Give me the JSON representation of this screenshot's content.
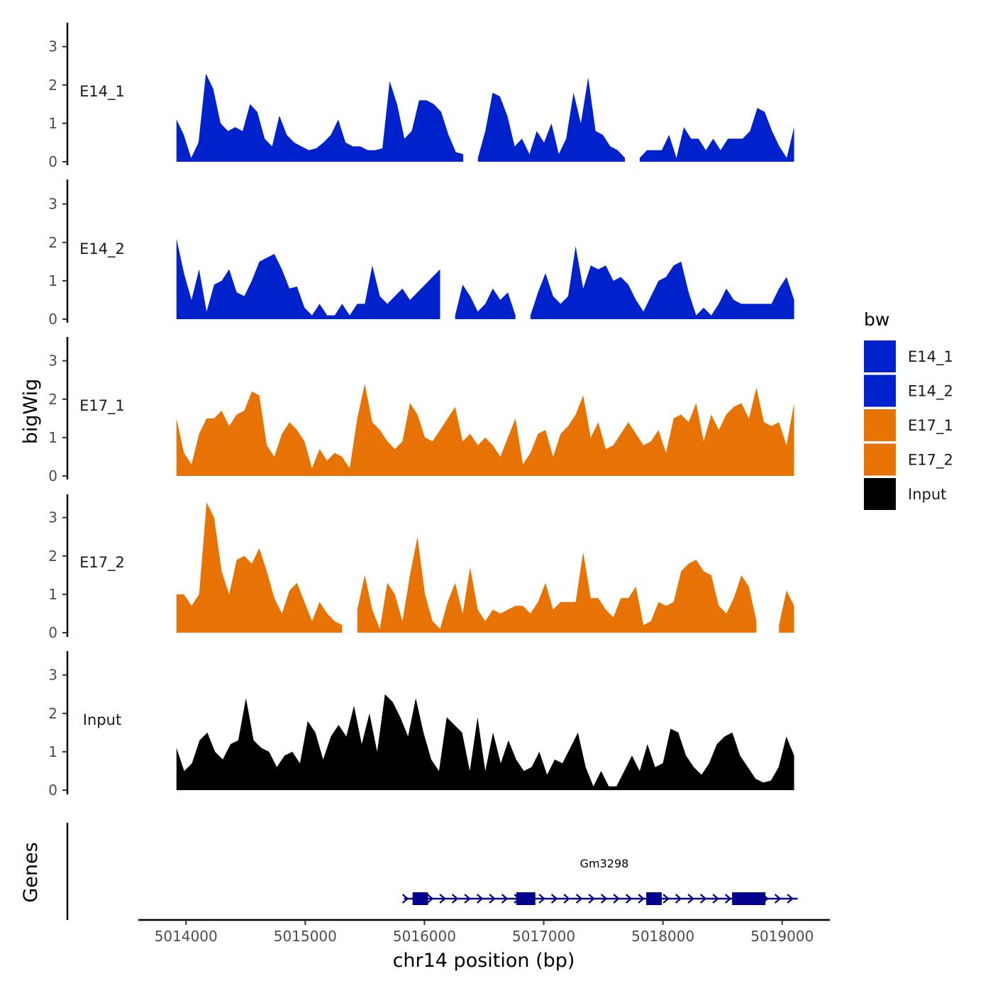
{
  "chart_data": {
    "type": "area",
    "title": "",
    "xlabel": "chr14 position (bp)",
    "ylabel": "bigWig",
    "genes_label": "Genes",
    "xlim": [
      5013600,
      5019400
    ],
    "ylim": [
      0,
      3.5
    ],
    "x_ticks": [
      5014000,
      5015000,
      5016000,
      5017000,
      5018000,
      5019000
    ],
    "x_tick_labels": [
      "5014000",
      "5015000",
      "5016000",
      "5017000",
      "5018000",
      "5019000"
    ],
    "y_ticks": [
      0,
      1,
      2,
      3
    ],
    "y_tick_labels": [
      "0",
      "1",
      "2",
      "3"
    ],
    "legend": {
      "title": "bw",
      "position": "right",
      "entries": [
        {
          "label": "E14_1",
          "color": "#0022CC"
        },
        {
          "label": "E14_2",
          "color": "#0022CC"
        },
        {
          "label": "E17_1",
          "color": "#E87305"
        },
        {
          "label": "E17_2",
          "color": "#E87305"
        },
        {
          "label": "Input",
          "color": "#000000"
        }
      ]
    },
    "series": [
      {
        "name": "E14_1",
        "color": "#0022CC",
        "x_start": 5013920,
        "x_end": 5019100,
        "values": [
          1.1,
          0.7,
          0.1,
          0.5,
          2.3,
          1.9,
          1.0,
          0.8,
          0.9,
          0.8,
          1.5,
          1.3,
          0.6,
          0.4,
          1.2,
          0.7,
          0.5,
          0.4,
          0.3,
          0.35,
          0.5,
          0.7,
          1.1,
          0.5,
          0.4,
          0.4,
          0.3,
          0.3,
          0.35,
          2.1,
          1.5,
          0.6,
          0.8,
          1.6,
          1.6,
          1.5,
          1.3,
          0.7,
          0.25,
          0.2,
          null,
          0.1,
          0.8,
          1.8,
          1.7,
          1.2,
          0.4,
          0.6,
          0.2,
          0.8,
          0.5,
          1.0,
          0.2,
          0.6,
          1.8,
          1.0,
          2.2,
          0.8,
          0.7,
          0.4,
          0.3,
          0.1,
          null,
          0.1,
          0.3,
          0.3,
          0.3,
          0.7,
          0.1,
          0.9,
          0.6,
          0.6,
          0.3,
          0.6,
          0.3,
          0.6,
          0.6,
          0.6,
          0.8,
          1.4,
          1.3,
          0.8,
          0.4,
          0.1,
          0.9
        ]
      },
      {
        "name": "E14_2",
        "color": "#0022CC",
        "x_start": 5013920,
        "x_end": 5019100,
        "values": [
          2.1,
          1.2,
          0.5,
          1.3,
          0.2,
          0.9,
          1.0,
          1.3,
          0.7,
          0.6,
          1.0,
          1.5,
          1.6,
          1.7,
          1.3,
          0.8,
          0.85,
          0.3,
          0.1,
          0.4,
          0.1,
          0.1,
          0.4,
          0.1,
          0.4,
          0.4,
          1.4,
          0.6,
          0.4,
          0.6,
          0.8,
          0.5,
          0.7,
          0.9,
          1.1,
          1.3,
          null,
          0.1,
          0.9,
          0.6,
          0.2,
          0.4,
          0.8,
          0.5,
          0.7,
          0.1,
          null,
          0.1,
          0.7,
          1.2,
          0.6,
          0.4,
          0.6,
          1.9,
          0.8,
          1.4,
          1.3,
          1.4,
          1.0,
          1.1,
          0.9,
          0.5,
          0.2,
          0.6,
          1.0,
          1.1,
          1.4,
          1.5,
          0.7,
          0.1,
          0.3,
          0.1,
          0.4,
          0.8,
          0.5,
          0.4,
          0.4,
          0.4,
          0.4,
          0.4,
          0.8,
          1.1,
          0.5
        ]
      },
      {
        "name": "E17_1",
        "color": "#E87305",
        "x_start": 5013920,
        "x_end": 5019100,
        "values": [
          1.5,
          0.6,
          0.3,
          1.1,
          1.5,
          1.5,
          1.7,
          1.3,
          1.6,
          1.7,
          2.2,
          2.1,
          0.8,
          0.5,
          1.1,
          1.4,
          1.2,
          0.9,
          0.2,
          0.7,
          0.4,
          0.6,
          0.5,
          0.2,
          1.5,
          2.4,
          1.4,
          1.2,
          0.9,
          0.7,
          0.9,
          1.9,
          1.6,
          1.0,
          0.9,
          1.2,
          1.5,
          1.8,
          0.9,
          1.1,
          0.8,
          1.0,
          0.8,
          0.5,
          1.0,
          1.5,
          0.3,
          0.6,
          1.1,
          1.2,
          0.5,
          1.1,
          1.3,
          1.6,
          2.1,
          1.0,
          1.4,
          0.7,
          0.8,
          1.1,
          1.4,
          1.1,
          0.8,
          0.9,
          1.2,
          0.6,
          1.5,
          1.6,
          1.4,
          1.9,
          0.9,
          1.6,
          1.2,
          1.6,
          1.8,
          1.9,
          1.5,
          2.3,
          1.4,
          1.3,
          1.4,
          0.8,
          1.9
        ]
      },
      {
        "name": "E17_2",
        "color": "#E87305",
        "x_start": 5013920,
        "x_end": 5019100,
        "values": [
          1.0,
          1.0,
          0.7,
          1.0,
          3.4,
          3.0,
          1.6,
          1.0,
          1.9,
          2.0,
          1.8,
          2.2,
          1.6,
          0.9,
          0.5,
          1.1,
          1.3,
          0.8,
          0.3,
          0.8,
          0.5,
          0.3,
          0.2,
          null,
          0.6,
          1.5,
          0.6,
          0.1,
          1.3,
          1.0,
          0.3,
          1.5,
          2.5,
          1.0,
          0.3,
          0.1,
          0.8,
          1.3,
          0.5,
          1.7,
          0.6,
          0.3,
          0.6,
          0.5,
          0.6,
          0.7,
          0.7,
          0.5,
          0.8,
          1.3,
          0.6,
          0.8,
          0.8,
          0.8,
          2.1,
          0.9,
          0.9,
          0.6,
          0.4,
          0.9,
          0.9,
          1.2,
          0.2,
          0.3,
          0.8,
          0.7,
          0.8,
          1.6,
          1.8,
          1.9,
          1.6,
          1.5,
          0.7,
          0.5,
          0.9,
          1.5,
          1.2,
          0.3,
          null,
          null,
          0.2,
          1.1,
          0.7
        ]
      },
      {
        "name": "Input",
        "color": "#000000",
        "x_start": 5013920,
        "x_end": 5019100,
        "values": [
          1.1,
          0.5,
          0.7,
          1.3,
          1.5,
          1.0,
          0.8,
          1.2,
          1.3,
          2.4,
          1.3,
          1.1,
          1.0,
          0.6,
          0.9,
          1.0,
          0.7,
          1.8,
          1.5,
          0.8,
          1.4,
          1.7,
          1.4,
          2.2,
          1.2,
          2.0,
          1.0,
          2.5,
          2.3,
          1.9,
          1.4,
          2.4,
          1.5,
          0.8,
          0.5,
          1.9,
          1.7,
          1.5,
          0.5,
          1.9,
          0.5,
          1.5,
          0.7,
          1.3,
          0.8,
          0.5,
          0.6,
          1.0,
          0.4,
          0.8,
          0.7,
          1.1,
          1.5,
          0.6,
          0.1,
          0.5,
          0.1,
          0.1,
          0.5,
          0.9,
          0.5,
          1.2,
          0.6,
          0.7,
          1.6,
          1.5,
          0.9,
          0.6,
          0.4,
          0.7,
          1.2,
          1.4,
          1.5,
          0.9,
          0.6,
          0.3,
          0.2,
          0.25,
          0.6,
          1.4,
          0.9
        ]
      }
    ],
    "gene": {
      "name": "Gm3298",
      "strand": "+",
      "color": "#00008B",
      "start": 5015900,
      "end": 5019130,
      "exons": [
        [
          5015900,
          5016030
        ],
        [
          5016770,
          5016930
        ],
        [
          5017860,
          5017990
        ],
        [
          5018580,
          5018860
        ]
      ]
    }
  }
}
